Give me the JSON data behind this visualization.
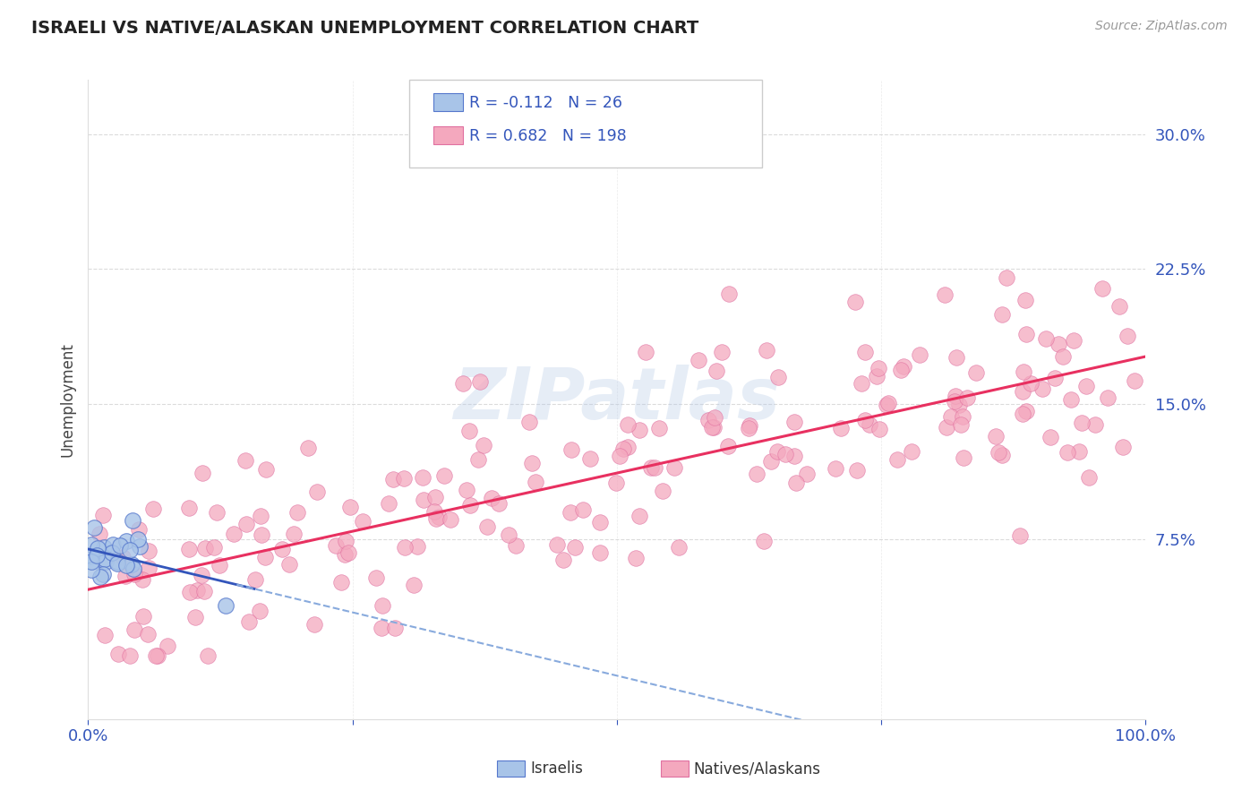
{
  "title": "ISRAELI VS NATIVE/ALASKAN UNEMPLOYMENT CORRELATION CHART",
  "source": "Source: ZipAtlas.com",
  "ylabel": "Unemployment",
  "xlim": [
    0,
    1.0
  ],
  "ylim": [
    -0.025,
    0.33
  ],
  "yticks": [
    0.075,
    0.15,
    0.225,
    0.3
  ],
  "ytick_labels": [
    "7.5%",
    "15.0%",
    "22.5%",
    "30.0%"
  ],
  "xticks": [
    0.0,
    0.25,
    0.5,
    0.75,
    1.0
  ],
  "xtick_labels": [
    "0.0%",
    "",
    "",
    "",
    "100.0%"
  ],
  "israeli_R": -0.112,
  "israeli_N": 26,
  "native_R": 0.682,
  "native_N": 198,
  "israeli_color": "#a8c4e8",
  "native_color": "#f4a8be",
  "trend_israeli_solid_color": "#3355bb",
  "trend_israeli_dash_color": "#88aadd",
  "trend_native_color": "#e83060",
  "background_color": "#ffffff",
  "watermark": "ZIPatlas",
  "title_color": "#222222",
  "axis_label_color": "#444444",
  "tick_color": "#3355bb",
  "grid_color": "#cccccc",
  "grid_style": "--",
  "legend_box_edge": "#cccccc"
}
